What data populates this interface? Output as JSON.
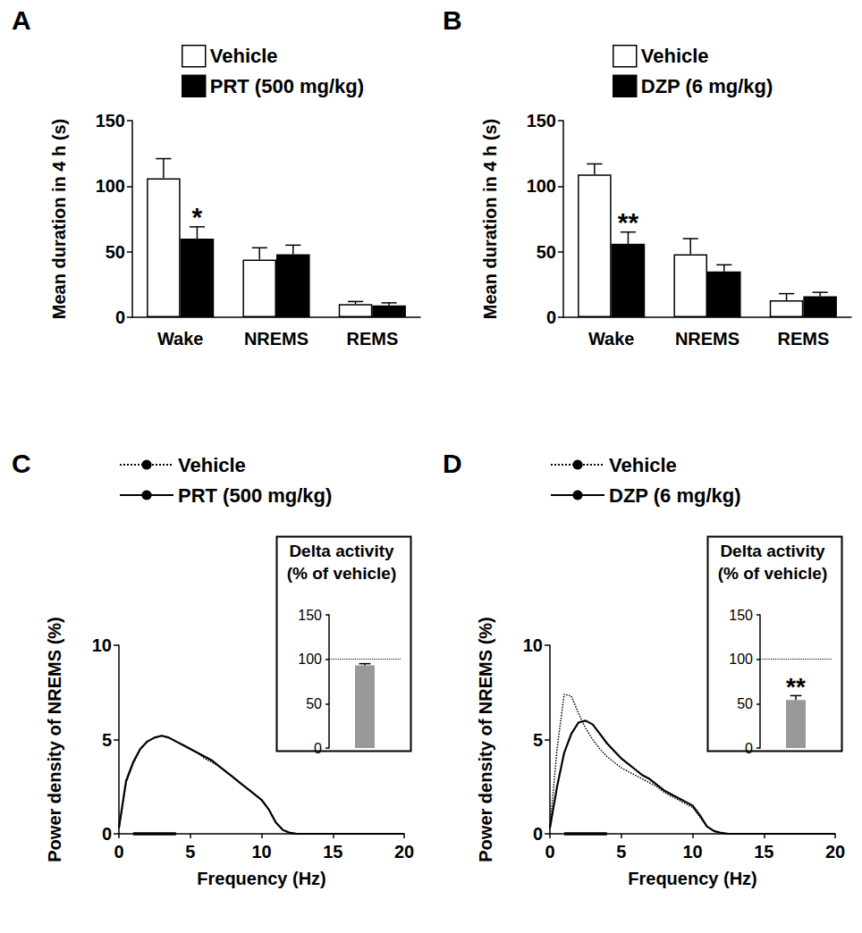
{
  "chart_data": [
    {
      "type": "bar",
      "panel": "A",
      "ylabel": "Mean duration in 4 h (s)",
      "categories": [
        "Wake",
        "NREMS",
        "REMS"
      ],
      "series": [
        {
          "name": "Vehicle",
          "color": "#ffffff",
          "values": [
            106,
            44,
            10
          ],
          "errors": [
            15,
            9,
            2
          ]
        },
        {
          "name": "PRT (500 mg/kg)",
          "color": "#000000",
          "values": [
            60,
            48,
            9
          ],
          "errors": [
            9,
            7,
            2
          ]
        }
      ],
      "annotations": [
        {
          "category": "Wake",
          "series": "PRT (500 mg/kg)",
          "text": "*"
        }
      ],
      "ylim": [
        0,
        150
      ],
      "yticks": [
        0,
        50,
        100,
        150
      ],
      "grid": false
    },
    {
      "type": "bar",
      "panel": "B",
      "ylabel": "Mean duration in 4 h (s)",
      "categories": [
        "Wake",
        "NREMS",
        "REMS"
      ],
      "series": [
        {
          "name": "Vehicle",
          "color": "#ffffff",
          "values": [
            109,
            48,
            13
          ],
          "errors": [
            8,
            12,
            5
          ]
        },
        {
          "name": "DZP (6 mg/kg)",
          "color": "#000000",
          "values": [
            56,
            35,
            16
          ],
          "errors": [
            9,
            5,
            3
          ]
        }
      ],
      "annotations": [
        {
          "category": "Wake",
          "series": "DZP (6 mg/kg)",
          "text": "**"
        }
      ],
      "ylim": [
        0,
        150
      ],
      "yticks": [
        0,
        50,
        100,
        150
      ],
      "grid": false
    },
    {
      "type": "line",
      "panel": "C",
      "xlabel": "Frequency (Hz)",
      "ylabel": "Power density of NREMS (%)",
      "x": [
        0,
        0.5,
        1,
        1.5,
        2,
        2.5,
        3,
        3.5,
        4,
        4.5,
        5,
        5.5,
        6,
        6.5,
        7,
        7.5,
        8,
        8.5,
        9,
        9.5,
        10,
        10.5,
        11,
        11.5,
        12,
        12.5,
        13,
        13.5,
        14,
        14.5,
        15,
        15.5,
        16,
        16.5,
        17,
        17.5,
        18,
        18.5,
        19,
        19.5,
        20
      ],
      "series": [
        {
          "name": "Vehicle",
          "color": "#000000",
          "line_style": "dotted",
          "values": [
            0.3,
            2.7,
            3.7,
            4.5,
            4.9,
            5.1,
            5.2,
            5.1,
            4.9,
            4.7,
            4.5,
            4.3,
            4.0,
            3.8,
            3.6,
            3.3,
            3.0,
            2.7,
            2.4,
            2.1,
            1.8,
            1.3,
            0.6,
            0.2,
            0.05,
            0,
            0,
            0,
            0,
            0,
            0,
            0,
            0,
            0,
            0,
            0,
            0,
            0,
            0,
            0,
            0
          ]
        },
        {
          "name": "PRT (500 mg/kg)",
          "color": "#000000",
          "line_style": "solid",
          "values": [
            0.3,
            2.8,
            3.8,
            4.5,
            4.9,
            5.1,
            5.2,
            5.1,
            4.9,
            4.7,
            4.5,
            4.3,
            4.1,
            3.9,
            3.6,
            3.3,
            3.0,
            2.7,
            2.4,
            2.1,
            1.8,
            1.3,
            0.6,
            0.2,
            0.05,
            0,
            0,
            0,
            0,
            0,
            0,
            0,
            0,
            0,
            0,
            0,
            0,
            0,
            0,
            0,
            0
          ]
        }
      ],
      "delta_band": [
        1,
        4
      ],
      "xlim": [
        0,
        20
      ],
      "xticks": [
        0,
        5,
        10,
        15,
        20
      ],
      "ylim": [
        0,
        10
      ],
      "yticks": [
        0,
        5,
        10
      ],
      "grid": false,
      "inset": {
        "type": "bar",
        "title": [
          "Delta activity",
          "(% of vehicle)"
        ],
        "values": [
          93
        ],
        "errors": [
          2
        ],
        "color": "#999999",
        "reference_line": 100,
        "ylim": [
          0,
          150
        ],
        "yticks": [
          0,
          50,
          100,
          150
        ]
      }
    },
    {
      "type": "line",
      "panel": "D",
      "xlabel": "Frequency (Hz)",
      "ylabel": "Power density of NREMS (%)",
      "x": [
        0,
        0.5,
        1,
        1.5,
        2,
        2.5,
        3,
        3.5,
        4,
        4.5,
        5,
        5.5,
        6,
        6.5,
        7,
        7.5,
        8,
        8.5,
        9,
        9.5,
        10,
        10.5,
        11,
        11.5,
        12,
        12.5,
        13,
        13.5,
        14,
        14.5,
        15,
        15.5,
        16,
        16.5,
        17,
        17.5,
        18,
        18.5,
        19,
        19.5,
        20
      ],
      "series": [
        {
          "name": "Vehicle",
          "color": "#000000",
          "line_style": "dotted",
          "values": [
            0.3,
            4.5,
            7.4,
            7.3,
            6.4,
            5.6,
            5.0,
            4.5,
            4.1,
            3.8,
            3.5,
            3.3,
            3.1,
            2.9,
            2.7,
            2.5,
            2.2,
            2.0,
            1.8,
            1.6,
            1.4,
            0.9,
            0.4,
            0.15,
            0.05,
            0,
            0,
            0,
            0,
            0,
            0,
            0,
            0,
            0,
            0,
            0,
            0,
            0,
            0,
            0,
            0
          ]
        },
        {
          "name": "DZP (6 mg/kg)",
          "color": "#000000",
          "line_style": "solid",
          "values": [
            0.3,
            2.5,
            4.3,
            5.3,
            5.9,
            6.0,
            5.8,
            5.3,
            4.8,
            4.4,
            4.0,
            3.7,
            3.4,
            3.1,
            2.9,
            2.6,
            2.3,
            2.1,
            1.9,
            1.7,
            1.5,
            1.0,
            0.4,
            0.15,
            0.05,
            0,
            0,
            0,
            0,
            0,
            0,
            0,
            0,
            0,
            0,
            0,
            0,
            0,
            0,
            0,
            0
          ]
        }
      ],
      "delta_band": [
        1,
        4
      ],
      "xlim": [
        0,
        20
      ],
      "xticks": [
        0,
        5,
        10,
        15,
        20
      ],
      "ylim": [
        0,
        10
      ],
      "yticks": [
        0,
        5,
        10
      ],
      "grid": false,
      "inset": {
        "type": "bar",
        "title": [
          "Delta activity",
          "(% of vehicle)"
        ],
        "values": [
          54
        ],
        "errors": [
          5
        ],
        "color": "#999999",
        "reference_line": 100,
        "annotation": "**",
        "ylim": [
          0,
          150
        ],
        "yticks": [
          0,
          50,
          100,
          150
        ]
      }
    }
  ]
}
